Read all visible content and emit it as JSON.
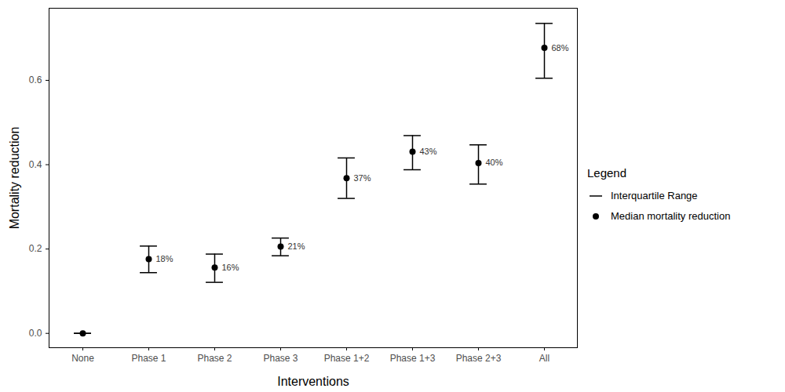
{
  "chart_data": {
    "type": "scatter",
    "x_label": "Interventions",
    "y_label": "Mortality reduction",
    "legend_title": "Legend",
    "legend": "right",
    "data_labels": true,
    "categories": [
      "None",
      "Phase 1",
      "Phase 2",
      "Phase 3",
      "Phase 1+2",
      "Phase 1+3",
      "Phase 2+3",
      "All"
    ],
    "ylim": [
      -0.034,
      0.771
    ],
    "yticks": [
      {
        "value": 0,
        "label": "0.0"
      },
      0.2,
      0.4,
      0.6
    ],
    "series": [
      {
        "name": "Median mortality reduction",
        "color": "#000000",
        "marker": "circle",
        "values": [
          0,
          0.176,
          0.156,
          0.206,
          0.368,
          0.431,
          0.404,
          0.677
        ],
        "value_labels": [
          null,
          "18%",
          "16%",
          "21%",
          "37%",
          "43%",
          "40%",
          "68%"
        ],
        "error_name": "Interquartile Range",
        "error_low": [
          0,
          0.144,
          0.121,
          0.184,
          0.32,
          0.388,
          0.354,
          0.605
        ],
        "error_high": [
          0,
          0.207,
          0.188,
          0.226,
          0.416,
          0.469,
          0.447,
          0.735
        ]
      }
    ]
  }
}
